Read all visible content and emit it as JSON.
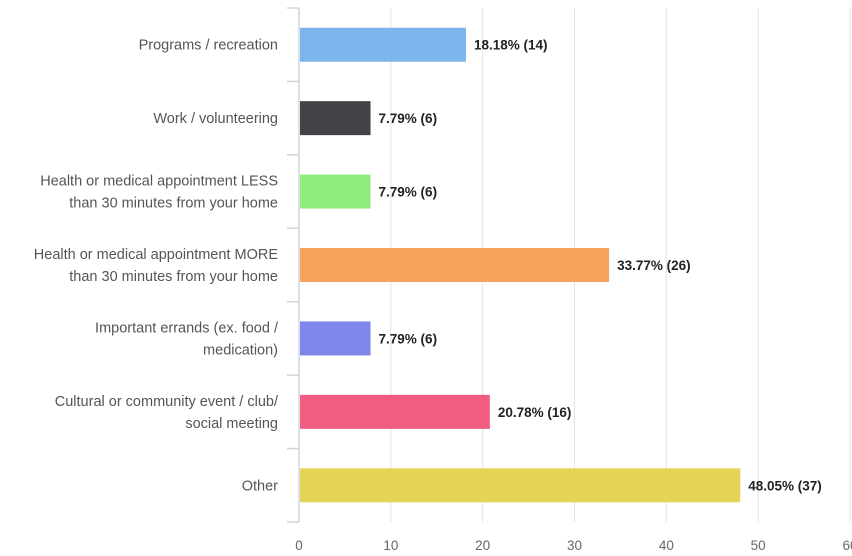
{
  "chart_data": {
    "type": "bar",
    "orientation": "horizontal",
    "title": "",
    "xlabel": "",
    "ylabel": "",
    "xlim": [
      0,
      60
    ],
    "ticks": [
      "0",
      "10",
      "20",
      "30",
      "40",
      "50",
      "60"
    ],
    "grid": true,
    "legend": "none",
    "categories": [
      [
        "Programs / recreation"
      ],
      [
        "Work / volunteering"
      ],
      [
        "Health or medical appointment LESS",
        "than 30 minutes from your home"
      ],
      [
        "Health or medical appointment MORE",
        "than 30 minutes from your home"
      ],
      [
        "Important errands (ex. food /",
        "medication)"
      ],
      [
        "Cultural or community event / club/",
        "social meeting"
      ],
      [
        "Other"
      ]
    ],
    "values": [
      18.18,
      7.79,
      7.79,
      33.77,
      7.79,
      20.78,
      48.05
    ],
    "counts": [
      14,
      6,
      6,
      26,
      6,
      16,
      37
    ],
    "data_labels": [
      "18.18% (14)",
      "7.79% (6)",
      "7.79% (6)",
      "33.77% (26)",
      "7.79% (6)",
      "20.78% (16)",
      "48.05% (37)"
    ],
    "colors": [
      "#7cb5ec",
      "#434348",
      "#90ed7d",
      "#f7a35c",
      "#8085e9",
      "#f15c80",
      "#e4d354"
    ]
  }
}
